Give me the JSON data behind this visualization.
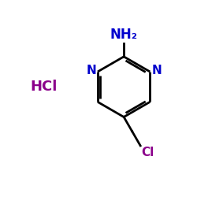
{
  "ring_color": "#000000",
  "n_color": "#0000CD",
  "nh2_color": "#0000CD",
  "hcl_color": "#8B008B",
  "cl_color": "#8B008B",
  "bg_color": "#FFFFFF",
  "line_width": 2.0,
  "font_size_labels": 11,
  "font_size_hcl": 13,
  "hcl_text": "HCl",
  "nh2_text": "NH₂",
  "n_text": "N",
  "cl_text": "Cl"
}
